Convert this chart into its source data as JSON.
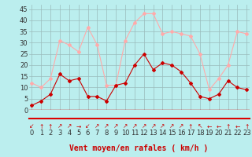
{
  "hours": [
    0,
    1,
    2,
    3,
    4,
    5,
    6,
    7,
    8,
    9,
    10,
    11,
    12,
    13,
    14,
    15,
    16,
    17,
    18,
    19,
    20,
    21,
    22,
    23
  ],
  "wind_avg": [
    2,
    4,
    7,
    16,
    13,
    14,
    6,
    6,
    4,
    11,
    12,
    20,
    25,
    18,
    21,
    20,
    17,
    12,
    6,
    5,
    7,
    13,
    10,
    9
  ],
  "wind_gust": [
    12,
    10,
    14,
    31,
    29,
    26,
    37,
    29,
    11,
    11,
    31,
    39,
    43,
    43,
    34,
    35,
    34,
    33,
    25,
    9,
    14,
    20,
    35,
    34
  ],
  "wind_dir_chars": [
    "↙",
    "↑",
    "↑",
    "↗",
    "↗",
    "→",
    "↙",
    "↗",
    "↗",
    "↗",
    "↗",
    "↗",
    "↗",
    "↗",
    "↗",
    "↗",
    "↗",
    "↑",
    "↖",
    "←",
    "←",
    "↑",
    "←",
    "↑"
  ],
  "color_avg": "#cc0000",
  "color_gust": "#ffaaaa",
  "bg_color": "#bbeeee",
  "grid_color": "#99bbbb",
  "xlabel": "Vent moyen/en rafales ( km/h )",
  "ylabel_ticks": [
    0,
    5,
    10,
    15,
    20,
    25,
    30,
    35,
    40,
    45
  ],
  "ylim": [
    0,
    47
  ],
  "xlim": [
    -0.3,
    23.3
  ],
  "xlabel_fontsize": 7,
  "tick_fontsize": 6,
  "arrow_fontsize": 5.5,
  "separator_color": "#dd0000"
}
